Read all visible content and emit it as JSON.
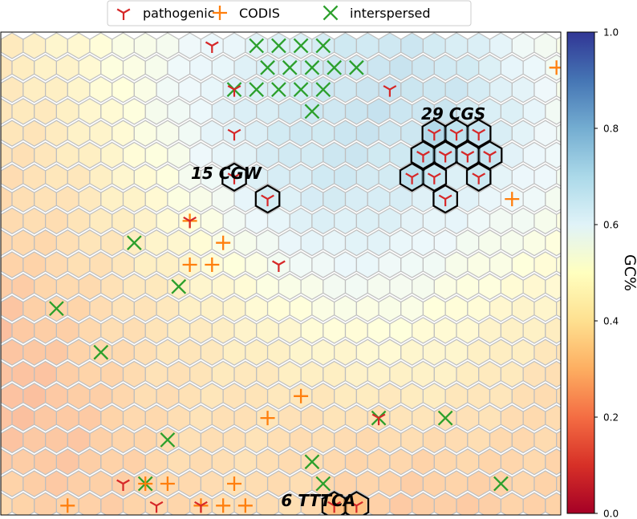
{
  "chart_data": {
    "type": "heatmap",
    "subtype": "hexagonal self-organizing map",
    "title": "",
    "legend": {
      "placement": "top-center",
      "entries": [
        {
          "name": "pathogenic",
          "marker": "tri-down",
          "color": "#d62728"
        },
        {
          "name": "CODIS",
          "marker": "plus",
          "color": "#ff7f0e"
        },
        {
          "name": "interspersed",
          "marker": "x",
          "color": "#2ca02c"
        }
      ]
    },
    "colorbar": {
      "label": "GC%",
      "colormap": "RdYlBu",
      "range": [
        0.0,
        1.0
      ],
      "ticks": [
        "0.0",
        "0.2",
        "0.4",
        "0.6",
        "0.8",
        "1.0"
      ]
    },
    "grid": {
      "cols": 25,
      "rows": 22
    },
    "annotations": [
      {
        "text": "15 CGW",
        "col": 10,
        "row": 6
      },
      {
        "text": "29 CGS",
        "col": 19,
        "row": 3
      },
      {
        "text": "6 TTTCA",
        "col": 14,
        "row": 20
      }
    ],
    "outlined_clusters": [
      {
        "label": "15 CGW",
        "cells": [
          [
            10,
            6
          ],
          [
            11,
            7
          ]
        ]
      },
      {
        "label": "29 CGS",
        "cells": [
          [
            19,
            4
          ],
          [
            20,
            4
          ],
          [
            21,
            4
          ],
          [
            18,
            5
          ],
          [
            19,
            5
          ],
          [
            20,
            5
          ],
          [
            21,
            5
          ],
          [
            18,
            6
          ],
          [
            19,
            6
          ],
          [
            21,
            6
          ],
          [
            19,
            7
          ]
        ]
      },
      {
        "label": "6 TTTCA",
        "cells": [
          [
            14,
            21
          ],
          [
            15,
            21
          ]
        ]
      }
    ],
    "series": [
      {
        "name": "pathogenic",
        "points": [
          [
            9,
            0
          ],
          [
            10,
            2
          ],
          [
            17,
            2
          ],
          [
            10,
            4
          ],
          [
            10,
            6
          ],
          [
            11,
            7
          ],
          [
            8,
            8
          ],
          [
            12,
            10
          ],
          [
            19,
            4
          ],
          [
            20,
            4
          ],
          [
            21,
            4
          ],
          [
            18,
            5
          ],
          [
            19,
            5
          ],
          [
            20,
            5
          ],
          [
            21,
            5
          ],
          [
            18,
            6
          ],
          [
            19,
            6
          ],
          [
            21,
            6
          ],
          [
            19,
            7
          ],
          [
            16,
            17
          ],
          [
            5,
            20
          ],
          [
            6,
            21
          ],
          [
            8,
            21
          ],
          [
            14,
            21
          ],
          [
            15,
            21
          ]
        ]
      },
      {
        "name": "CODIS",
        "points": [
          [
            24,
            1
          ],
          [
            22,
            7
          ],
          [
            8,
            8
          ],
          [
            9,
            9
          ],
          [
            8,
            10
          ],
          [
            9,
            10
          ],
          [
            13,
            16
          ],
          [
            11,
            17
          ],
          [
            7,
            20
          ],
          [
            6,
            20
          ],
          [
            10,
            20
          ],
          [
            2,
            21
          ],
          [
            8,
            21
          ],
          [
            9,
            21
          ],
          [
            10,
            21
          ]
        ]
      },
      {
        "name": "interspersed",
        "points": [
          [
            11,
            0
          ],
          [
            12,
            0
          ],
          [
            13,
            0
          ],
          [
            14,
            0
          ],
          [
            11,
            1
          ],
          [
            12,
            1
          ],
          [
            13,
            1
          ],
          [
            14,
            1
          ],
          [
            15,
            1
          ],
          [
            10,
            2
          ],
          [
            11,
            2
          ],
          [
            12,
            2
          ],
          [
            13,
            2
          ],
          [
            14,
            2
          ],
          [
            13,
            3
          ],
          [
            5,
            9
          ],
          [
            7,
            11
          ],
          [
            2,
            12
          ],
          [
            4,
            14
          ],
          [
            16,
            17
          ],
          [
            19,
            17
          ],
          [
            7,
            18
          ],
          [
            13,
            19
          ],
          [
            14,
            20
          ],
          [
            22,
            20
          ],
          [
            6,
            20
          ]
        ]
      }
    ]
  }
}
